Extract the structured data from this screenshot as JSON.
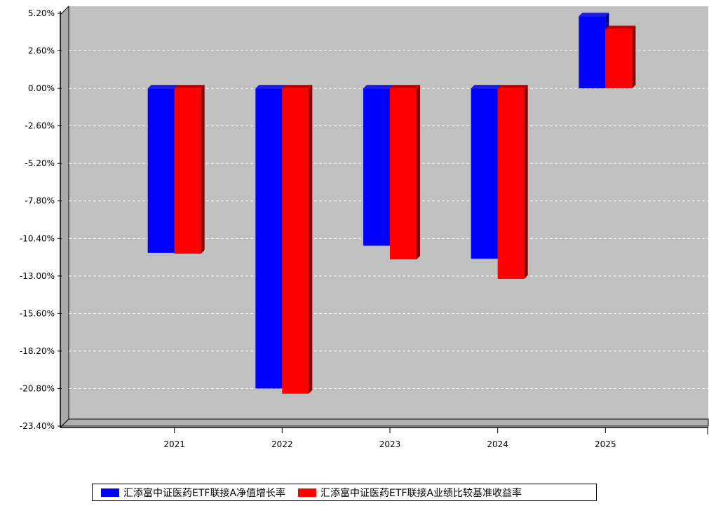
{
  "chart_data": {
    "type": "bar",
    "categories": [
      "2021",
      "2022",
      "2023",
      "2024",
      "2025"
    ],
    "series": [
      {
        "name": "汇添富中证医药ETF联接A净值增长率",
        "color": "#0000ff",
        "values": [
          -11.4,
          -20.8,
          -10.9,
          -11.8,
          5.0
        ]
      },
      {
        "name": "汇添富中证医药ETF联接A业绩比较基准收益率",
        "color": "#ff0000",
        "values": [
          -11.45,
          -21.15,
          -11.85,
          -13.2,
          4.1
        ]
      }
    ],
    "y_ticks": [
      "5.20%",
      "2.60%",
      "0.00%",
      "-2.60%",
      "-5.20%",
      "-7.80%",
      "-10.40%",
      "-13.00%",
      "-15.60%",
      "-18.20%",
      "-20.80%",
      "-23.40%"
    ],
    "ylim": [
      -23.4,
      5.2
    ],
    "grid": true,
    "legend_position": "bottom",
    "plot_background": "#c0c0c0"
  }
}
